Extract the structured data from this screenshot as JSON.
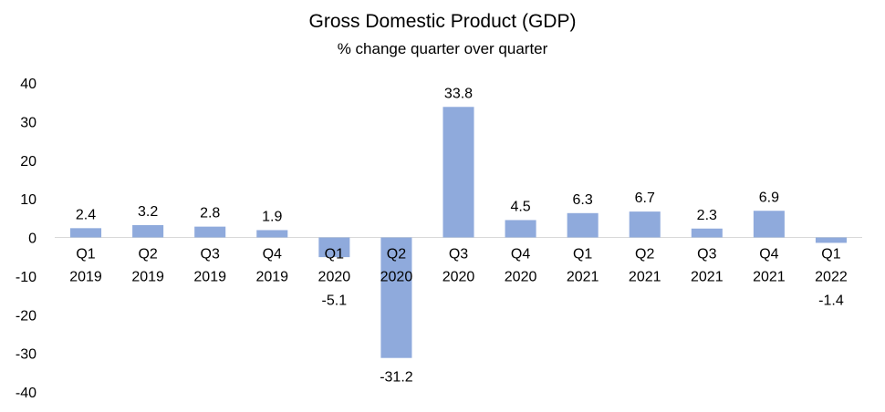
{
  "chart_data": {
    "type": "bar",
    "title": "Gross Domestic Product (GDP)",
    "subtitle": "% change quarter over quarter",
    "categories": [
      [
        "Q1",
        "2019"
      ],
      [
        "Q2",
        "2019"
      ],
      [
        "Q3",
        "2019"
      ],
      [
        "Q4",
        "2019"
      ],
      [
        "Q1",
        "2020"
      ],
      [
        "Q2",
        "2020"
      ],
      [
        "Q3",
        "2020"
      ],
      [
        "Q4",
        "2020"
      ],
      [
        "Q1",
        "2021"
      ],
      [
        "Q2",
        "2021"
      ],
      [
        "Q3",
        "2021"
      ],
      [
        "Q4",
        "2021"
      ],
      [
        "Q1",
        "2022"
      ]
    ],
    "values": [
      2.4,
      3.2,
      2.8,
      1.9,
      -5.1,
      -31.2,
      33.8,
      4.5,
      6.3,
      6.7,
      2.3,
      6.9,
      -1.4
    ],
    "value_labels": [
      "2.4",
      "3.2",
      "2.8",
      "1.9",
      "-5.1",
      "-31.2",
      "33.8",
      "4.5",
      "6.3",
      "6.7",
      "2.3",
      "6.9",
      "-1.4"
    ],
    "ylim": [
      -40,
      40
    ],
    "yticks": [
      40,
      30,
      20,
      10,
      0,
      -10,
      -20,
      -30,
      -40
    ],
    "xlabel": "",
    "ylabel": "",
    "grid": false,
    "legend": "none",
    "bar_color": "#8faadc"
  }
}
